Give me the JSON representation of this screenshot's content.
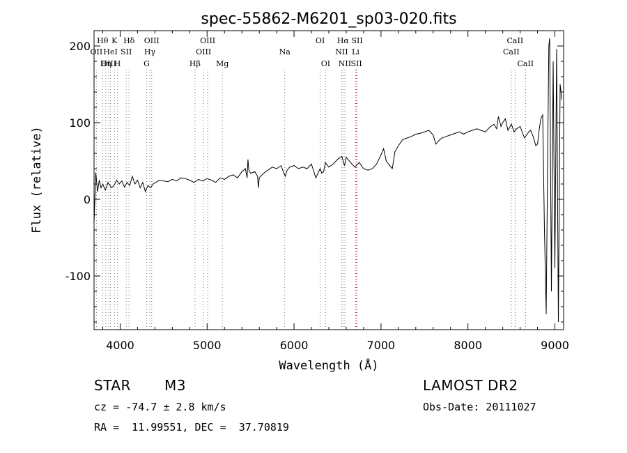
{
  "chart_data": {
    "type": "line",
    "title": "spec-55862-M6201_sp03-020.fits",
    "xlabel": "Wavelength (Å)",
    "ylabel": "Flux (relative)",
    "xlim": [
      3700,
      9100
    ],
    "ylim": [
      -170,
      220
    ],
    "x_ticks": [
      4000,
      5000,
      6000,
      7000,
      8000,
      9000
    ],
    "y_ticks": [
      -100,
      0,
      100,
      200
    ],
    "grid": false,
    "series": [
      {
        "x": [
          3700,
          3720,
          3740,
          3760,
          3780,
          3800,
          3830,
          3860,
          3900,
          3930,
          3960,
          3990,
          4020,
          4050,
          4080,
          4110,
          4140,
          4170,
          4200,
          4230,
          4260,
          4290,
          4320,
          4350,
          4380,
          4410,
          4450,
          4500,
          4550,
          4600,
          4650,
          4700,
          4750,
          4800,
          4850,
          4900,
          4950,
          5000,
          5050,
          5100,
          5150,
          5200,
          5250,
          5300,
          5350,
          5400,
          5440,
          5460,
          5470,
          5480,
          5500,
          5550,
          5580,
          5590,
          5600,
          5650,
          5700,
          5750,
          5800,
          5850,
          5880,
          5900,
          5920,
          5950,
          6000,
          6050,
          6100,
          6150,
          6200,
          6250,
          6300,
          6320,
          6340,
          6360,
          6400,
          6450,
          6500,
          6550,
          6580,
          6600,
          6620,
          6650,
          6700,
          6750,
          6800,
          6850,
          6900,
          6950,
          7000,
          7030,
          7060,
          7100,
          7130,
          7160,
          7200,
          7250,
          7300,
          7350,
          7400,
          7450,
          7500,
          7550,
          7600,
          7630,
          7660,
          7700,
          7750,
          7800,
          7850,
          7900,
          7950,
          8000,
          8050,
          8100,
          8150,
          8200,
          8250,
          8300,
          8330,
          8350,
          8380,
          8400,
          8430,
          8460,
          8500,
          8530,
          8560,
          8600,
          8650,
          8700,
          8720,
          8750,
          8780,
          8800,
          8820,
          8840,
          8860,
          8880,
          8900,
          8920,
          8930,
          8940,
          8960,
          8980,
          9000,
          9020,
          9040,
          9060,
          9080
        ],
        "y": [
          -30,
          35,
          10,
          25,
          15,
          20,
          12,
          22,
          15,
          18,
          25,
          20,
          24,
          16,
          22,
          18,
          30,
          20,
          25,
          15,
          22,
          10,
          18,
          15,
          20,
          22,
          25,
          24,
          23,
          26,
          24,
          28,
          27,
          25,
          22,
          26,
          24,
          27,
          25,
          22,
          28,
          26,
          30,
          32,
          28,
          36,
          40,
          28,
          52,
          38,
          34,
          36,
          30,
          15,
          28,
          34,
          38,
          42,
          40,
          44,
          35,
          30,
          38,
          42,
          44,
          40,
          42,
          40,
          46,
          28,
          40,
          34,
          36,
          48,
          42,
          46,
          52,
          56,
          44,
          55,
          52,
          48,
          42,
          48,
          40,
          38,
          40,
          46,
          58,
          66,
          50,
          44,
          40,
          62,
          70,
          78,
          80,
          82,
          85,
          86,
          88,
          90,
          84,
          72,
          76,
          80,
          82,
          84,
          86,
          88,
          85,
          88,
          90,
          92,
          90,
          88,
          94,
          98,
          92,
          108,
          95,
          100,
          105,
          90,
          98,
          88,
          92,
          95,
          80,
          88,
          90,
          82,
          70,
          72,
          92,
          106,
          110,
          -40,
          -150,
          90,
          200,
          210,
          -120,
          180,
          -90,
          196,
          -160,
          150,
          130
        ]
      }
    ],
    "lines": [
      {
        "label": "Hθ",
        "x": 3798,
        "color": "#777777",
        "row": 0
      },
      {
        "label": "OII",
        "x": 3727,
        "color": "#777777",
        "row": 1
      },
      {
        "label": "OIII",
        "x": 3869,
        "color": "#777777",
        "row": 2
      },
      {
        "label": "K",
        "x": 3934,
        "color": "#777777",
        "row": 0
      },
      {
        "label": "HeI",
        "x": 3889,
        "color": "#777777",
        "row": 1
      },
      {
        "label": "Hη",
        "x": 3835,
        "color": "#777777",
        "row": 2
      },
      {
        "label": "Hδ",
        "x": 4102,
        "color": "#777777",
        "row": 0
      },
      {
        "label": "SII",
        "x": 4070,
        "color": "#777777",
        "row": 1
      },
      {
        "label": "H",
        "x": 3969,
        "color": "#777777",
        "row": 2
      },
      {
        "label": "OIII",
        "x": 4363,
        "color": "#777777",
        "row": 0
      },
      {
        "label": "Hγ",
        "x": 4341,
        "color": "#777777",
        "row": 1
      },
      {
        "label": "G",
        "x": 4305,
        "color": "#777777",
        "row": 2
      },
      {
        "label": "OIII",
        "x": 5007,
        "color": "#777777",
        "row": 0
      },
      {
        "label": "OIII",
        "x": 4959,
        "color": "#777777",
        "row": 1
      },
      {
        "label": "Hβ",
        "x": 4861,
        "color": "#777777",
        "row": 2
      },
      {
        "label": "Mg",
        "x": 5175,
        "color": "#777777",
        "row": 2
      },
      {
        "label": "Na",
        "x": 5893,
        "color": "#777777",
        "row": 1
      },
      {
        "label": "OI",
        "x": 6300,
        "color": "#777777",
        "row": 0
      },
      {
        "label": "OI",
        "x": 6363,
        "color": "#777777",
        "row": 2
      },
      {
        "label": "Hα",
        "x": 6563,
        "color": "#777777",
        "row": 0
      },
      {
        "label": "SII",
        "x": 6725,
        "color": "#cc3333",
        "row": 0
      },
      {
        "label": "NII",
        "x": 6548,
        "color": "#777777",
        "row": 1
      },
      {
        "label": "Li",
        "x": 6708,
        "color": "#cc3333",
        "row": 1
      },
      {
        "label": "NII",
        "x": 6584,
        "color": "#777777",
        "row": 2
      },
      {
        "label": "SII",
        "x": 6717,
        "color": "#cc3333",
        "row": 2
      },
      {
        "label": "CaII",
        "x": 8542,
        "color": "#cc3333",
        "row": 0
      },
      {
        "label": "CaII",
        "x": 8498,
        "color": "#cc3333",
        "row": 1
      },
      {
        "label": "CaII",
        "x": 8662,
        "color": "#cc3333",
        "row": 2
      }
    ]
  },
  "info": {
    "class": "STAR",
    "subclass": "M3",
    "survey": "LAMOST DR2",
    "cz": "cz = -74.7 ± 2.8 km/s",
    "obs_date": "Obs-Date: 20111027",
    "radec": "RA =  11.99551, DEC =  37.70819"
  }
}
